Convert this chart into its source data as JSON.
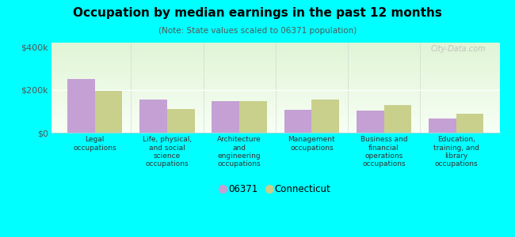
{
  "title": "Occupation by median earnings in the past 12 months",
  "subtitle": "(Note: State values scaled to 06371 population)",
  "categories": [
    "Legal\noccupations",
    "Life, physical,\nand social\nscience\noccupations",
    "Architecture\nand\nengineering\noccupations",
    "Management\noccupations",
    "Business and\nfinancial\noperations\noccupations",
    "Education,\ntraining, and\nlibrary\noccupations"
  ],
  "values_06371": [
    250000,
    155000,
    148000,
    108000,
    103000,
    67000
  ],
  "values_ct": [
    195000,
    112000,
    148000,
    155000,
    128000,
    88000
  ],
  "color_06371": "#c4a0d4",
  "color_ct": "#c8d08c",
  "legend_labels": [
    "06371",
    "Connecticut"
  ],
  "ylim": [
    0,
    420000
  ],
  "yticks": [
    0,
    200000,
    400000
  ],
  "ytick_labels": [
    "$0",
    "$200k",
    "$400k"
  ],
  "background_color": "#00ffff",
  "watermark": "City-Data.com",
  "bar_width": 0.38
}
